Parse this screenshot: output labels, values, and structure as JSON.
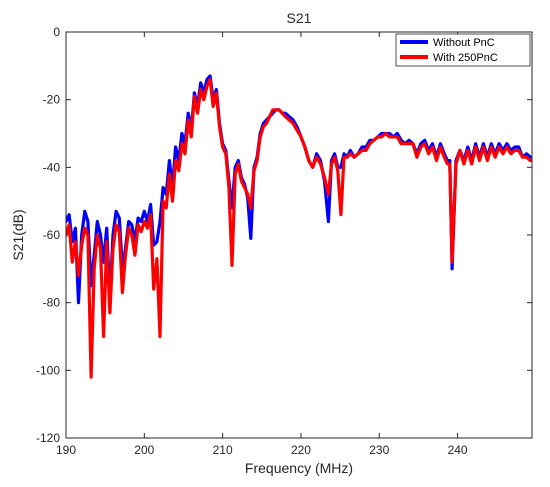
{
  "chart_data": {
    "type": "line",
    "title": "S21",
    "xlabel": "Frequency (MHz)",
    "ylabel": "S21(dB)",
    "xlim": [
      190,
      249.5
    ],
    "ylim": [
      -120,
      0
    ],
    "xticks": [
      190,
      200,
      210,
      220,
      230,
      240
    ],
    "yticks": [
      0,
      -20,
      -40,
      -60,
      -80,
      -100,
      -120
    ],
    "legend_position": "top-right",
    "series": [
      {
        "name": "Without PnC",
        "color": "#0000ff",
        "x": [
          190.0,
          190.4,
          190.8,
          191.2,
          191.6,
          192.0,
          192.4,
          192.8,
          193.2,
          193.6,
          194.0,
          194.4,
          194.8,
          195.2,
          195.6,
          196.0,
          196.4,
          196.8,
          197.2,
          197.6,
          198.0,
          198.4,
          198.8,
          199.2,
          199.6,
          200.0,
          200.4,
          200.8,
          201.2,
          201.6,
          202.0,
          202.4,
          202.8,
          203.2,
          203.6,
          204.0,
          204.4,
          204.8,
          205.2,
          205.6,
          206.0,
          206.4,
          206.8,
          207.2,
          207.6,
          208.0,
          208.4,
          208.8,
          209.2,
          209.6,
          210.0,
          210.4,
          210.8,
          211.2,
          211.6,
          212.0,
          212.4,
          212.8,
          213.2,
          213.6,
          214.0,
          214.4,
          214.8,
          215.2,
          215.6,
          216.0,
          216.4,
          216.8,
          217.2,
          217.6,
          218.0,
          218.5,
          219.0,
          219.5,
          220.0,
          220.5,
          221.0,
          221.5,
          222.0,
          222.5,
          223.0,
          223.5,
          223.9,
          224.3,
          224.7,
          225.1,
          225.5,
          225.9,
          226.3,
          226.8,
          227.3,
          227.8,
          228.3,
          228.8,
          229.3,
          229.8,
          230.3,
          230.8,
          231.3,
          231.8,
          232.3,
          232.8,
          233.3,
          233.8,
          234.3,
          234.8,
          235.3,
          235.8,
          236.3,
          236.8,
          237.3,
          237.8,
          238.3,
          238.7,
          239.0,
          239.3,
          239.8,
          240.3,
          240.8,
          241.3,
          241.8,
          242.3,
          242.8,
          243.3,
          243.8,
          244.3,
          244.8,
          245.3,
          245.8,
          246.3,
          246.8,
          247.3,
          247.8,
          248.3,
          248.8,
          249.3
        ],
        "y": [
          -56,
          -54,
          -62,
          -58,
          -80,
          -60,
          -53,
          -56,
          -75,
          -66,
          -56,
          -60,
          -68,
          -58,
          -79,
          -60,
          -53,
          -55,
          -70,
          -64,
          -56,
          -57,
          -62,
          -55,
          -56,
          -53,
          -56,
          -51,
          -63,
          -62,
          -56,
          -46,
          -48,
          -38,
          -46,
          -34,
          -38,
          -30,
          -33,
          -24,
          -29,
          -18,
          -22,
          -15,
          -18,
          -14,
          -13,
          -20,
          -17,
          -27,
          -33,
          -35,
          -44,
          -52,
          -40,
          -38,
          -43,
          -45,
          -49,
          -61,
          -40,
          -37,
          -30,
          -27,
          -26,
          -25,
          -24,
          -23,
          -23,
          -24,
          -24,
          -25,
          -26,
          -28,
          -31,
          -34,
          -38,
          -40,
          -36,
          -38,
          -44,
          -56,
          -38,
          -36,
          -40,
          -40,
          -36,
          -37,
          -35,
          -37,
          -36,
          -34,
          -34,
          -32,
          -32,
          -31,
          -30,
          -30,
          -30,
          -31,
          -30,
          -32,
          -33,
          -32,
          -33,
          -36,
          -33,
          -32,
          -35,
          -33,
          -37,
          -33,
          -36,
          -38,
          -38,
          -70,
          -38,
          -35,
          -38,
          -34,
          -38,
          -33,
          -37,
          -33,
          -37,
          -33,
          -36,
          -33,
          -35,
          -33,
          -35,
          -34,
          -34,
          -37,
          -36,
          -37
        ]
      },
      {
        "name": "With 250PnC",
        "color": "#ff0000",
        "x": [
          190.0,
          190.4,
          190.8,
          191.2,
          191.6,
          192.0,
          192.4,
          192.8,
          193.2,
          193.6,
          194.0,
          194.4,
          194.8,
          195.2,
          195.6,
          196.0,
          196.4,
          196.8,
          197.2,
          197.6,
          198.0,
          198.4,
          198.8,
          199.2,
          199.6,
          200.0,
          200.4,
          200.8,
          201.2,
          201.6,
          202.0,
          202.4,
          202.8,
          203.2,
          203.6,
          204.0,
          204.4,
          204.8,
          205.2,
          205.6,
          206.0,
          206.4,
          206.8,
          207.2,
          207.6,
          208.0,
          208.4,
          208.8,
          209.2,
          209.6,
          210.0,
          210.4,
          210.8,
          211.2,
          211.6,
          212.0,
          212.4,
          212.8,
          213.2,
          213.6,
          214.0,
          214.4,
          214.8,
          215.2,
          215.6,
          216.0,
          216.4,
          216.8,
          217.2,
          217.6,
          218.0,
          218.5,
          219.0,
          219.5,
          220.0,
          220.5,
          221.0,
          221.5,
          222.0,
          222.5,
          223.0,
          223.5,
          223.9,
          224.3,
          224.7,
          225.1,
          225.5,
          225.9,
          226.3,
          226.8,
          227.3,
          227.8,
          228.3,
          228.8,
          229.3,
          229.8,
          230.3,
          230.8,
          231.3,
          231.8,
          232.3,
          232.8,
          233.3,
          233.8,
          234.3,
          234.8,
          235.3,
          235.8,
          236.3,
          236.8,
          237.3,
          237.8,
          238.3,
          238.7,
          239.0,
          239.3,
          239.8,
          240.3,
          240.8,
          241.3,
          241.8,
          242.3,
          242.8,
          243.3,
          243.8,
          244.3,
          244.8,
          245.3,
          245.8,
          246.3,
          246.8,
          247.3,
          247.8,
          248.3,
          248.8,
          249.3
        ],
        "y": [
          -60,
          -57,
          -68,
          -62,
          -72,
          -63,
          -58,
          -60,
          -102,
          -70,
          -60,
          -64,
          -90,
          -62,
          -83,
          -64,
          -57,
          -59,
          -77,
          -66,
          -58,
          -60,
          -66,
          -57,
          -59,
          -56,
          -58,
          -54,
          -76,
          -67,
          -90,
          -50,
          -52,
          -42,
          -50,
          -38,
          -41,
          -33,
          -36,
          -26,
          -31,
          -19,
          -24,
          -17,
          -20,
          -16,
          -14,
          -22,
          -18,
          -28,
          -34,
          -36,
          -46,
          -69,
          -42,
          -39,
          -44,
          -46,
          -48,
          -52,
          -41,
          -38,
          -31,
          -28,
          -27,
          -25,
          -23,
          -23,
          -23,
          -24,
          -25,
          -26,
          -27,
          -29,
          -31,
          -34,
          -38,
          -40,
          -37,
          -39,
          -43,
          -48,
          -39,
          -37,
          -41,
          -54,
          -37,
          -37,
          -36,
          -37,
          -36,
          -35,
          -35,
          -33,
          -32,
          -31,
          -31,
          -30,
          -31,
          -31,
          -31,
          -33,
          -33,
          -33,
          -33,
          -37,
          -34,
          -33,
          -36,
          -34,
          -38,
          -34,
          -37,
          -39,
          -39,
          -68,
          -39,
          -35,
          -39,
          -35,
          -39,
          -34,
          -38,
          -34,
          -38,
          -34,
          -37,
          -34,
          -36,
          -34,
          -36,
          -35,
          -35,
          -37,
          -37,
          -38
        ]
      }
    ]
  }
}
